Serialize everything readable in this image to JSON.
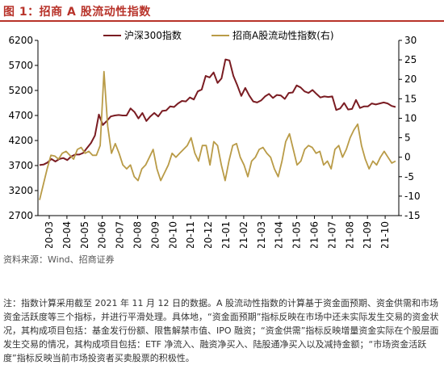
{
  "figure_title": "图 1：招商 A 股流动性指数",
  "source": "资料来源：Wind、招商证券",
  "note": "注：指数计算采用截至 2021 年 11 月 12 日的数据。A 股流动性指数的计算基于资金面预期、资金供需和市场资金活跃度等三个指标，并进行平滑处理。具体地，“资金面预期”指标反映在市场中还未实际发生交易的资金状况，其构成项目包括：基金发行份额、限售解禁市值、IPO 融资；“资金供需”指标反映增量资金实际在个股层面发生交易的情况，其构成项目包括：ETF 净流入、融资净买入、陆股通净买入以及减持金额；“市场资金活跃度”指标反映当前市场投资者买卖股票的积极性。",
  "colors": {
    "csi300": "#7a1c22",
    "liquidity": "#b99b47",
    "title": "#b8332a"
  },
  "chart_data": {
    "type": "line",
    "x_tick_labels": [
      "2020-03",
      "2020-04",
      "2020-05",
      "2020-06",
      "2020-07",
      "2020-08",
      "2020-09",
      "2020-10",
      "2020-11",
      "2020-12",
      "2021-01",
      "2021-02",
      "2021-03",
      "2021-04",
      "2021-05",
      "2021-06",
      "2021-07",
      "2021-08",
      "2021-09",
      "2021-10"
    ],
    "y_left": {
      "ticks": [
        2700,
        3200,
        3700,
        4200,
        4700,
        5200,
        5700,
        6200
      ],
      "lim": [
        2700,
        6200
      ]
    },
    "y_right": {
      "ticks": [
        -15,
        -10,
        -5,
        0,
        5,
        10,
        15,
        20,
        25,
        30
      ],
      "lim": [
        -15,
        30
      ]
    },
    "legend_position": "top",
    "series": [
      {
        "name": "沪深300指数",
        "axis": "left",
        "values": [
          3710,
          3720,
          3760,
          3830,
          3780,
          3830,
          3850,
          3810,
          3880,
          3920,
          3920,
          3950,
          4050,
          4150,
          4300,
          4720,
          4510,
          4590,
          4680,
          4700,
          4710,
          4700,
          4700,
          4840,
          4770,
          4640,
          4750,
          4590,
          4680,
          4750,
          4680,
          4790,
          4800,
          4880,
          4870,
          4940,
          4990,
          4980,
          5060,
          5020,
          5180,
          5220,
          5490,
          5460,
          5560,
          5350,
          5440,
          5820,
          5800,
          5490,
          5300,
          5090,
          5250,
          5100,
          4980,
          4960,
          5000,
          5080,
          5130,
          5050,
          5110,
          5100,
          5030,
          5150,
          5160,
          5300,
          5260,
          5180,
          5150,
          5210,
          5130,
          5060,
          5080,
          5070,
          5080,
          4810,
          4840,
          4950,
          4820,
          4830,
          5010,
          4850,
          4880,
          4880,
          4940,
          4920,
          4940,
          4960,
          4940,
          4890,
          4870
        ]
      },
      {
        "name": "招商A股流动性指数(右)",
        "axis": "right",
        "values": [
          -11,
          -7,
          -3,
          0.5,
          0.3,
          -0.5,
          1,
          1.5,
          0.5,
          -0.5,
          2,
          2.5,
          1,
          1.5,
          0.5,
          0.5,
          3,
          22,
          8,
          1,
          3.5,
          1,
          -2,
          -3,
          -2,
          -5,
          -6,
          -3,
          -2,
          0,
          2,
          -3,
          -6,
          -4,
          -2,
          1,
          0,
          1,
          2,
          3,
          5,
          1,
          -1,
          3,
          3,
          -2,
          4,
          3,
          -2,
          -6,
          -1,
          3,
          3.5,
          0,
          -2,
          -5,
          -1,
          0,
          2,
          2.5,
          1,
          0,
          -3,
          -5,
          -1,
          4,
          6,
          2,
          -2,
          -1,
          2,
          3,
          2.5,
          1,
          1.5,
          -2,
          -1,
          -3,
          2,
          3,
          0,
          2,
          5,
          7,
          8.5,
          3,
          -0.5,
          -3,
          -1,
          -2,
          0,
          1.5,
          0,
          -1.5,
          -1
        ]
      }
    ]
  }
}
